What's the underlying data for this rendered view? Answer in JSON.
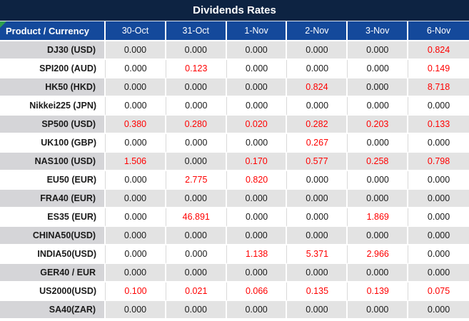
{
  "title": "Dividends Rates",
  "colors": {
    "title_bar": "#0d2342",
    "header_blue": "#14499b",
    "header_text": "#ffffff",
    "gray_row_product": "#d5d5d8",
    "gray_row_value": "#e3e3e3",
    "white_row": "#ffffff",
    "value_black": "#1a1a1a",
    "value_red": "#ff0000",
    "corner_flag_green": "#2f9e4f"
  },
  "table": {
    "product_header": "Product / Currency",
    "date_headers": [
      "30-Oct",
      "31-Oct",
      "1-Nov",
      "2-Nov",
      "3-Nov",
      "6-Nov"
    ],
    "rows": [
      {
        "product": "DJ30 (USD)",
        "values": [
          "0.000",
          "0.000",
          "0.000",
          "0.000",
          "0.000",
          "0.824"
        ],
        "red": [
          false,
          false,
          false,
          false,
          false,
          true
        ]
      },
      {
        "product": "SPI200 (AUD)",
        "values": [
          "0.000",
          "0.123",
          "0.000",
          "0.000",
          "0.000",
          "0.149"
        ],
        "red": [
          false,
          true,
          false,
          false,
          false,
          true
        ]
      },
      {
        "product": "HK50 (HKD)",
        "values": [
          "0.000",
          "0.000",
          "0.000",
          "0.824",
          "0.000",
          "8.718"
        ],
        "red": [
          false,
          false,
          false,
          true,
          false,
          true
        ]
      },
      {
        "product": "Nikkei225 (JPN)",
        "values": [
          "0.000",
          "0.000",
          "0.000",
          "0.000",
          "0.000",
          "0.000"
        ],
        "red": [
          false,
          false,
          false,
          false,
          false,
          false
        ]
      },
      {
        "product": "SP500 (USD)",
        "values": [
          "0.380",
          "0.280",
          "0.020",
          "0.282",
          "0.203",
          "0.133"
        ],
        "red": [
          true,
          true,
          true,
          true,
          true,
          true
        ]
      },
      {
        "product": "UK100 (GBP)",
        "values": [
          "0.000",
          "0.000",
          "0.000",
          "0.267",
          "0.000",
          "0.000"
        ],
        "red": [
          false,
          false,
          false,
          true,
          false,
          false
        ]
      },
      {
        "product": "NAS100 (USD)",
        "values": [
          "1.506",
          "0.000",
          "0.170",
          "0.577",
          "0.258",
          "0.798"
        ],
        "red": [
          true,
          false,
          true,
          true,
          true,
          true
        ]
      },
      {
        "product": "EU50 (EUR)",
        "values": [
          "0.000",
          "2.775",
          "0.820",
          "0.000",
          "0.000",
          "0.000"
        ],
        "red": [
          false,
          true,
          true,
          false,
          false,
          false
        ]
      },
      {
        "product": "FRA40 (EUR)",
        "values": [
          "0.000",
          "0.000",
          "0.000",
          "0.000",
          "0.000",
          "0.000"
        ],
        "red": [
          false,
          false,
          false,
          false,
          false,
          false
        ]
      },
      {
        "product": "ES35 (EUR)",
        "values": [
          "0.000",
          "46.891",
          "0.000",
          "0.000",
          "1.869",
          "0.000"
        ],
        "red": [
          false,
          true,
          false,
          false,
          true,
          false
        ]
      },
      {
        "product": "CHINA50(USD)",
        "values": [
          "0.000",
          "0.000",
          "0.000",
          "0.000",
          "0.000",
          "0.000"
        ],
        "red": [
          false,
          false,
          false,
          false,
          false,
          false
        ]
      },
      {
        "product": "INDIA50(USD)",
        "values": [
          "0.000",
          "0.000",
          "1.138",
          "5.371",
          "2.966",
          "0.000"
        ],
        "red": [
          false,
          false,
          true,
          true,
          true,
          false
        ]
      },
      {
        "product": "GER40 / EUR",
        "values": [
          "0.000",
          "0.000",
          "0.000",
          "0.000",
          "0.000",
          "0.000"
        ],
        "red": [
          false,
          false,
          false,
          false,
          false,
          false
        ]
      },
      {
        "product": "US2000(USD)",
        "values": [
          "0.100",
          "0.021",
          "0.066",
          "0.135",
          "0.139",
          "0.075"
        ],
        "red": [
          true,
          true,
          true,
          true,
          true,
          true
        ]
      },
      {
        "product": "SA40(ZAR)",
        "values": [
          "0.000",
          "0.000",
          "0.000",
          "0.000",
          "0.000",
          "0.000"
        ],
        "red": [
          false,
          false,
          false,
          false,
          false,
          false
        ]
      }
    ]
  }
}
